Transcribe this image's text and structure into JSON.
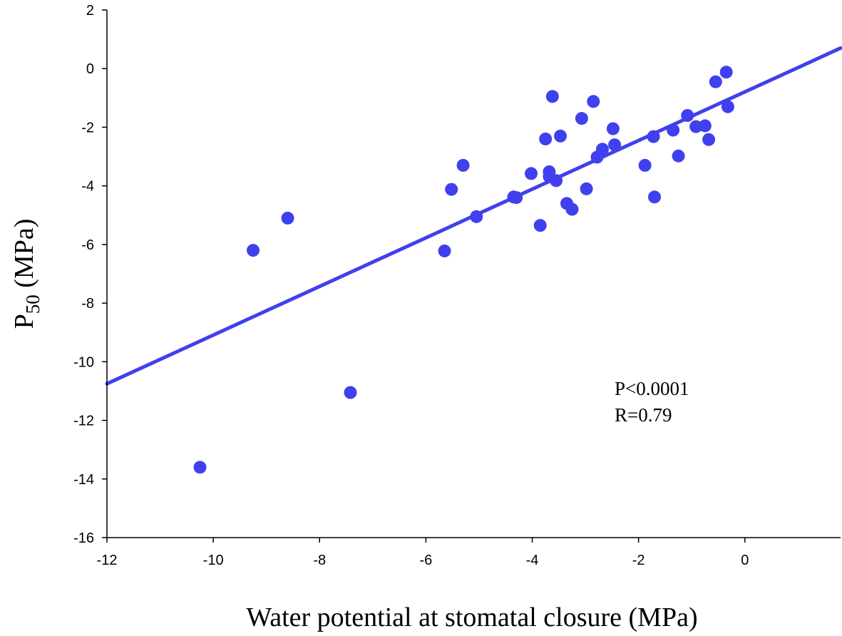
{
  "chart_data": {
    "type": "scatter",
    "title": "",
    "xlabel": "Water potential at stomatal closure (MPa)",
    "ylabel_main": "P",
    "ylabel_sub": "50",
    "ylabel_units": " (MPa)",
    "xlim": [
      -12,
      1.8
    ],
    "ylim": [
      -16,
      2
    ],
    "xticks": [
      -12,
      -10,
      -8,
      -6,
      -4,
      -2,
      0
    ],
    "yticks": [
      -16,
      -14,
      -12,
      -10,
      -8,
      -6,
      -4,
      -2,
      0,
      2
    ],
    "grid": false,
    "series": [
      {
        "name": "species",
        "color": "#4040ee",
        "points": [
          {
            "x": -10.25,
            "y": -13.6
          },
          {
            "x": -9.25,
            "y": -6.2
          },
          {
            "x": -8.6,
            "y": -5.1
          },
          {
            "x": -7.42,
            "y": -11.05
          },
          {
            "x": -5.65,
            "y": -6.22
          },
          {
            "x": -5.52,
            "y": -4.12
          },
          {
            "x": -5.3,
            "y": -3.3
          },
          {
            "x": -5.05,
            "y": -5.05
          },
          {
            "x": -4.35,
            "y": -4.38
          },
          {
            "x": -4.3,
            "y": -4.4
          },
          {
            "x": -4.02,
            "y": -3.58
          },
          {
            "x": -3.85,
            "y": -5.35
          },
          {
            "x": -3.75,
            "y": -2.4
          },
          {
            "x": -3.68,
            "y": -3.52
          },
          {
            "x": -3.68,
            "y": -3.68
          },
          {
            "x": -3.62,
            "y": -0.95
          },
          {
            "x": -3.55,
            "y": -3.82
          },
          {
            "x": -3.47,
            "y": -2.3
          },
          {
            "x": -3.35,
            "y": -4.6
          },
          {
            "x": -3.25,
            "y": -4.8
          },
          {
            "x": -3.07,
            "y": -1.7
          },
          {
            "x": -2.98,
            "y": -4.1
          },
          {
            "x": -2.85,
            "y": -1.12
          },
          {
            "x": -2.78,
            "y": -3.02
          },
          {
            "x": -2.68,
            "y": -2.75
          },
          {
            "x": -2.48,
            "y": -2.05
          },
          {
            "x": -2.45,
            "y": -2.6
          },
          {
            "x": -1.88,
            "y": -3.3
          },
          {
            "x": -1.72,
            "y": -2.32
          },
          {
            "x": -1.7,
            "y": -4.38
          },
          {
            "x": -1.35,
            "y": -2.1
          },
          {
            "x": -1.25,
            "y": -2.98
          },
          {
            "x": -1.08,
            "y": -1.6
          },
          {
            "x": -0.92,
            "y": -1.98
          },
          {
            "x": -0.75,
            "y": -1.95
          },
          {
            "x": -0.68,
            "y": -2.42
          },
          {
            "x": -0.55,
            "y": -0.45
          },
          {
            "x": -0.35,
            "y": -0.12
          },
          {
            "x": -0.32,
            "y": -1.3
          }
        ]
      }
    ],
    "fit_line": {
      "x0": -12,
      "y0": -10.75,
      "x1": 1.8,
      "y1": 0.7,
      "color": "#4040ee"
    },
    "annotations": [
      "P<0.0001",
      "R=0.79"
    ]
  }
}
